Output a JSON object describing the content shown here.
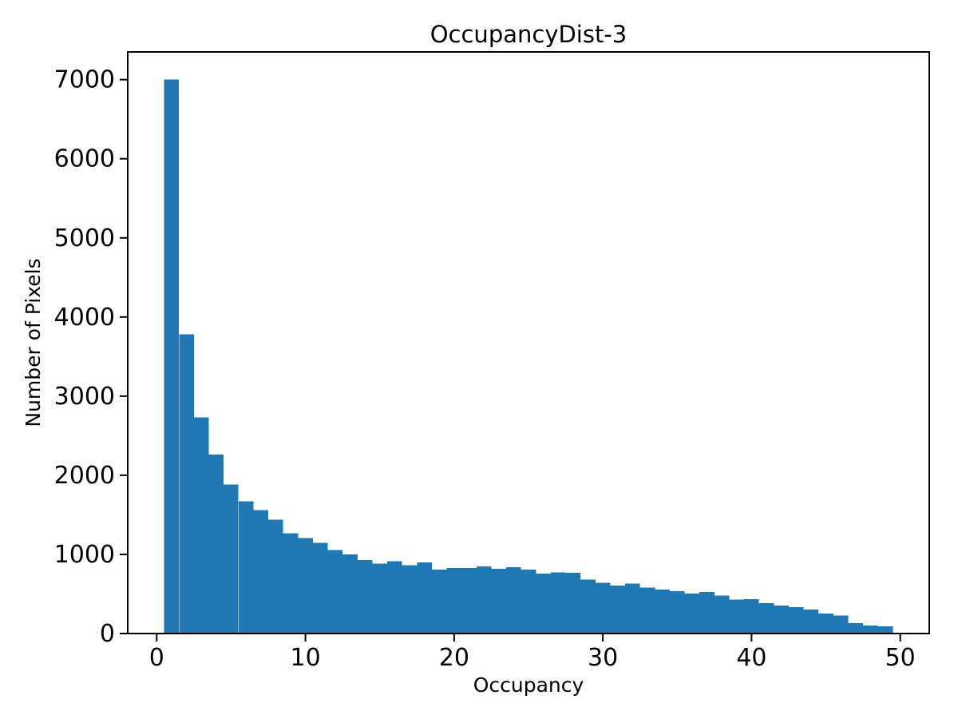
{
  "chart_data": {
    "type": "bar",
    "subtype": "histogram",
    "title": "OccupancyDist-3",
    "xlabel": "Occupancy",
    "ylabel": "Number of Pixels",
    "bin_start": 0.5,
    "bin_width": 1,
    "values": [
      7000,
      3780,
      2730,
      2260,
      1885,
      1670,
      1560,
      1440,
      1265,
      1205,
      1145,
      1055,
      1000,
      930,
      885,
      915,
      865,
      900,
      810,
      830,
      830,
      850,
      820,
      840,
      810,
      755,
      770,
      765,
      680,
      640,
      605,
      630,
      580,
      555,
      535,
      505,
      525,
      480,
      430,
      435,
      385,
      355,
      335,
      305,
      253,
      228,
      132,
      101,
      91
    ],
    "xlim": [
      -1.95,
      51.95
    ],
    "ylim": [
      0,
      7350
    ],
    "xticks": [
      0,
      10,
      20,
      30,
      40,
      50
    ],
    "yticks": [
      0,
      1000,
      2000,
      3000,
      4000,
      5000,
      6000,
      7000
    ],
    "grid": false,
    "legend": null,
    "bar_color": "#1f77b4",
    "axis_color": "#000000",
    "background": "#ffffff"
  }
}
